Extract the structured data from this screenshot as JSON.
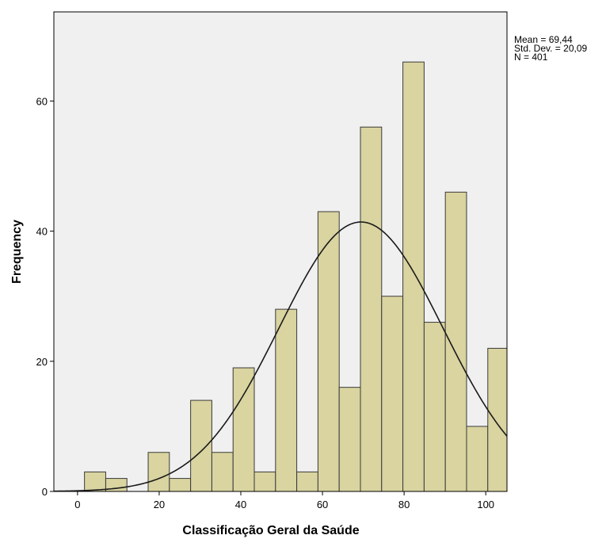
{
  "chart_data": {
    "type": "bar",
    "subtype": "histogram",
    "xlabel": "Classificação Geral da Saúde",
    "ylabel": "Frequency",
    "xlim": [
      -5.8,
      105.2
    ],
    "ylim": [
      0,
      73.7
    ],
    "xticks": [
      0,
      20,
      40,
      60,
      80,
      100
    ],
    "yticks": [
      0,
      20,
      40,
      60
    ],
    "bin_width": 5.2,
    "bins": [
      {
        "x0": 1.7,
        "x1": 6.9,
        "count": 3
      },
      {
        "x0": 6.9,
        "x1": 12.1,
        "count": 2
      },
      {
        "x0": 12.1,
        "x1": 17.3,
        "count": 0
      },
      {
        "x0": 17.3,
        "x1": 22.5,
        "count": 6
      },
      {
        "x0": 22.5,
        "x1": 27.7,
        "count": 2
      },
      {
        "x0": 27.7,
        "x1": 32.9,
        "count": 14
      },
      {
        "x0": 32.9,
        "x1": 38.1,
        "count": 6
      },
      {
        "x0": 38.1,
        "x1": 43.3,
        "count": 19
      },
      {
        "x0": 43.3,
        "x1": 48.5,
        "count": 3
      },
      {
        "x0": 48.5,
        "x1": 53.7,
        "count": 28
      },
      {
        "x0": 53.7,
        "x1": 58.9,
        "count": 3
      },
      {
        "x0": 58.9,
        "x1": 64.1,
        "count": 43
      },
      {
        "x0": 64.1,
        "x1": 69.3,
        "count": 16
      },
      {
        "x0": 69.3,
        "x1": 74.5,
        "count": 56
      },
      {
        "x0": 74.5,
        "x1": 79.7,
        "count": 30
      },
      {
        "x0": 79.7,
        "x1": 84.9,
        "count": 66
      },
      {
        "x0": 84.9,
        "x1": 90.1,
        "count": 26
      },
      {
        "x0": 90.1,
        "x1": 95.3,
        "count": 46
      },
      {
        "x0": 95.3,
        "x1": 100.5,
        "count": 10
      },
      {
        "x0": 100.5,
        "x1": 105.7,
        "count": 22
      }
    ],
    "normal_curve": {
      "mean": 69.44,
      "std": 20.09,
      "n": 401
    },
    "stats_labels": [
      "Mean = 69,44",
      "Std. Dev. = 20,09",
      "N = 401"
    ],
    "grid": false,
    "colors": {
      "plot_background": "#f0f0f0",
      "bar_fill": "#d9d4a0",
      "bar_stroke": "#3a3a3a",
      "curve": "#1a1a1a",
      "axis": "#000000"
    }
  }
}
